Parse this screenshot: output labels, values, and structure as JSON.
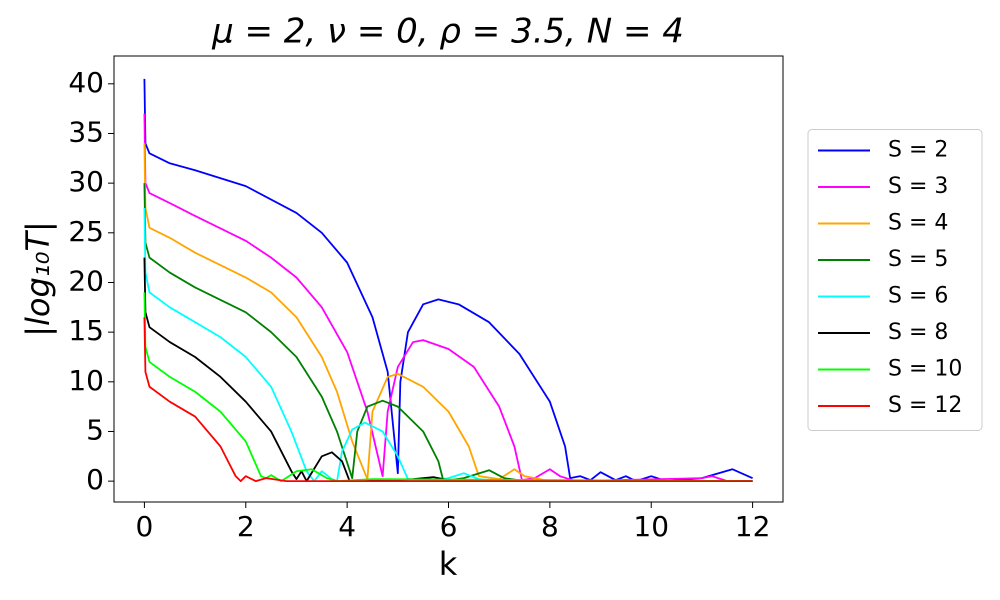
{
  "chart_data": {
    "type": "line",
    "title": "μ = 2, ν = 0, ρ = 3.5, N = 4",
    "x_label": "k",
    "y_label": "|log₁₀T|",
    "xlim": [
      -0.6,
      12.6
    ],
    "ylim": [
      -2.1,
      42.8
    ],
    "xticks": [
      0,
      2,
      4,
      6,
      8,
      10,
      12
    ],
    "yticks": [
      0,
      5,
      10,
      15,
      20,
      25,
      30,
      35,
      40
    ],
    "grid": false,
    "legend": "right",
    "series": [
      {
        "name": "S = 2",
        "color": "#0000ff",
        "x": [
          0,
          0.02,
          0.1,
          0.5,
          1,
          2,
          3,
          3.5,
          4,
          4.5,
          4.8,
          5.0,
          5.05,
          5.2,
          5.5,
          5.8,
          6.2,
          6.8,
          7.4,
          8.0,
          8.3,
          8.4,
          8.6,
          8.8,
          9.0,
          9.3,
          9.5,
          9.7,
          10,
          10.3,
          11,
          11.6,
          12
        ],
        "values": [
          40.5,
          34,
          33,
          32,
          31.3,
          29.7,
          27,
          25,
          22,
          16.5,
          11,
          0.8,
          10,
          15,
          17.8,
          18.3,
          17.8,
          16,
          12.8,
          8,
          3.5,
          0.3,
          0.5,
          0.1,
          0.9,
          0.1,
          0.5,
          0,
          0.5,
          0,
          0.3,
          1.2,
          0.3
        ]
      },
      {
        "name": "S = 3",
        "color": "#ff00ff",
        "x": [
          0,
          0.02,
          0.1,
          0.5,
          1,
          2,
          2.5,
          3,
          3.5,
          4,
          4.4,
          4.7,
          4.8,
          5,
          5.3,
          5.5,
          6,
          6.5,
          7,
          7.3,
          7.45,
          7.7,
          8.0,
          8.2,
          8.5,
          11,
          11.2,
          11.5,
          12
        ],
        "values": [
          37,
          30,
          29,
          28,
          26.7,
          24.2,
          22.5,
          20.5,
          17.5,
          13,
          7,
          0.5,
          7,
          11.5,
          14,
          14.2,
          13.3,
          11.5,
          7.5,
          3.5,
          0.1,
          0.3,
          1.2,
          0.5,
          0,
          0.3,
          0.5,
          0,
          0
        ]
      },
      {
        "name": "S = 4",
        "color": "#ffa500",
        "x": [
          0,
          0.02,
          0.1,
          0.5,
          1,
          2,
          2.5,
          3,
          3.5,
          3.8,
          4.1,
          4.4,
          4.5,
          4.8,
          5.0,
          5.5,
          6,
          6.4,
          6.6,
          7,
          7.3,
          7.5,
          8,
          12
        ],
        "values": [
          34,
          27.5,
          25.5,
          24.5,
          23,
          20.5,
          19,
          16.5,
          12.5,
          9,
          4,
          0.2,
          7,
          10.5,
          10.8,
          9.5,
          7,
          3.5,
          0.5,
          0.2,
          1.2,
          0.5,
          0,
          0
        ]
      },
      {
        "name": "S = 5",
        "color": "#008000",
        "x": [
          0,
          0.02,
          0.1,
          0.5,
          1,
          2,
          2.5,
          3,
          3.5,
          3.8,
          4.1,
          4.2,
          4.4,
          4.7,
          5,
          5.5,
          5.8,
          5.9,
          6.3,
          6.8,
          7.1,
          7.5,
          12
        ],
        "values": [
          30,
          24,
          22.5,
          21,
          19.5,
          17,
          15,
          12.5,
          8.5,
          5,
          0.3,
          5,
          7.5,
          8.1,
          7.5,
          5,
          2,
          0,
          0.3,
          1.1,
          0.3,
          0,
          0
        ]
      },
      {
        "name": "S = 6",
        "color": "#00ffff",
        "x": [
          0,
          0.02,
          0.1,
          0.5,
          1,
          1.5,
          2,
          2.5,
          2.9,
          3.2,
          3.35,
          3.5,
          3.7,
          3.8,
          3.9,
          4.1,
          4.35,
          4.7,
          5,
          5.2,
          5.6,
          6,
          6.3,
          6.6,
          7,
          12
        ],
        "values": [
          27.5,
          21,
          19,
          17.5,
          16,
          14.5,
          12.5,
          9.5,
          5,
          1,
          0,
          1,
          0.2,
          0,
          3,
          5.2,
          5.9,
          5,
          2.5,
          0.2,
          0,
          0.3,
          0.8,
          0.2,
          0,
          0
        ]
      },
      {
        "name": "S = 8",
        "color": "#000000",
        "x": [
          0,
          0.02,
          0.1,
          0.5,
          1,
          1.5,
          2,
          2.5,
          2.9,
          3.0,
          3.1,
          3.2,
          3.5,
          3.7,
          3.9,
          4.05,
          4.3,
          5.3,
          5.7,
          6,
          6.5,
          12
        ],
        "values": [
          22.5,
          17,
          15.5,
          14,
          12.5,
          10.5,
          8,
          5,
          1,
          0.2,
          1,
          0,
          2.5,
          2.9,
          2,
          0,
          0,
          0.2,
          0.4,
          0.1,
          0,
          0
        ]
      },
      {
        "name": "S = 10",
        "color": "#00ff00",
        "x": [
          0,
          0.02,
          0.1,
          0.5,
          1,
          1.5,
          2,
          2.3,
          2.4,
          2.5,
          2.7,
          3,
          3.3,
          3.6,
          3.8,
          4.5,
          12
        ],
        "values": [
          19,
          13.5,
          12,
          10.5,
          9,
          7,
          4,
          0.5,
          0.3,
          0.6,
          0,
          1,
          1.2,
          0.3,
          0,
          0.2,
          0
        ]
      },
      {
        "name": "S = 12",
        "color": "#ff0000",
        "x": [
          0,
          0.02,
          0.1,
          0.5,
          1,
          1.5,
          1.8,
          1.9,
          2,
          2.2,
          2.4,
          2.8,
          12
        ],
        "values": [
          16.5,
          11,
          9.5,
          8,
          6.5,
          3.5,
          0.5,
          0,
          0.5,
          0,
          0.3,
          0,
          0
        ]
      }
    ]
  }
}
